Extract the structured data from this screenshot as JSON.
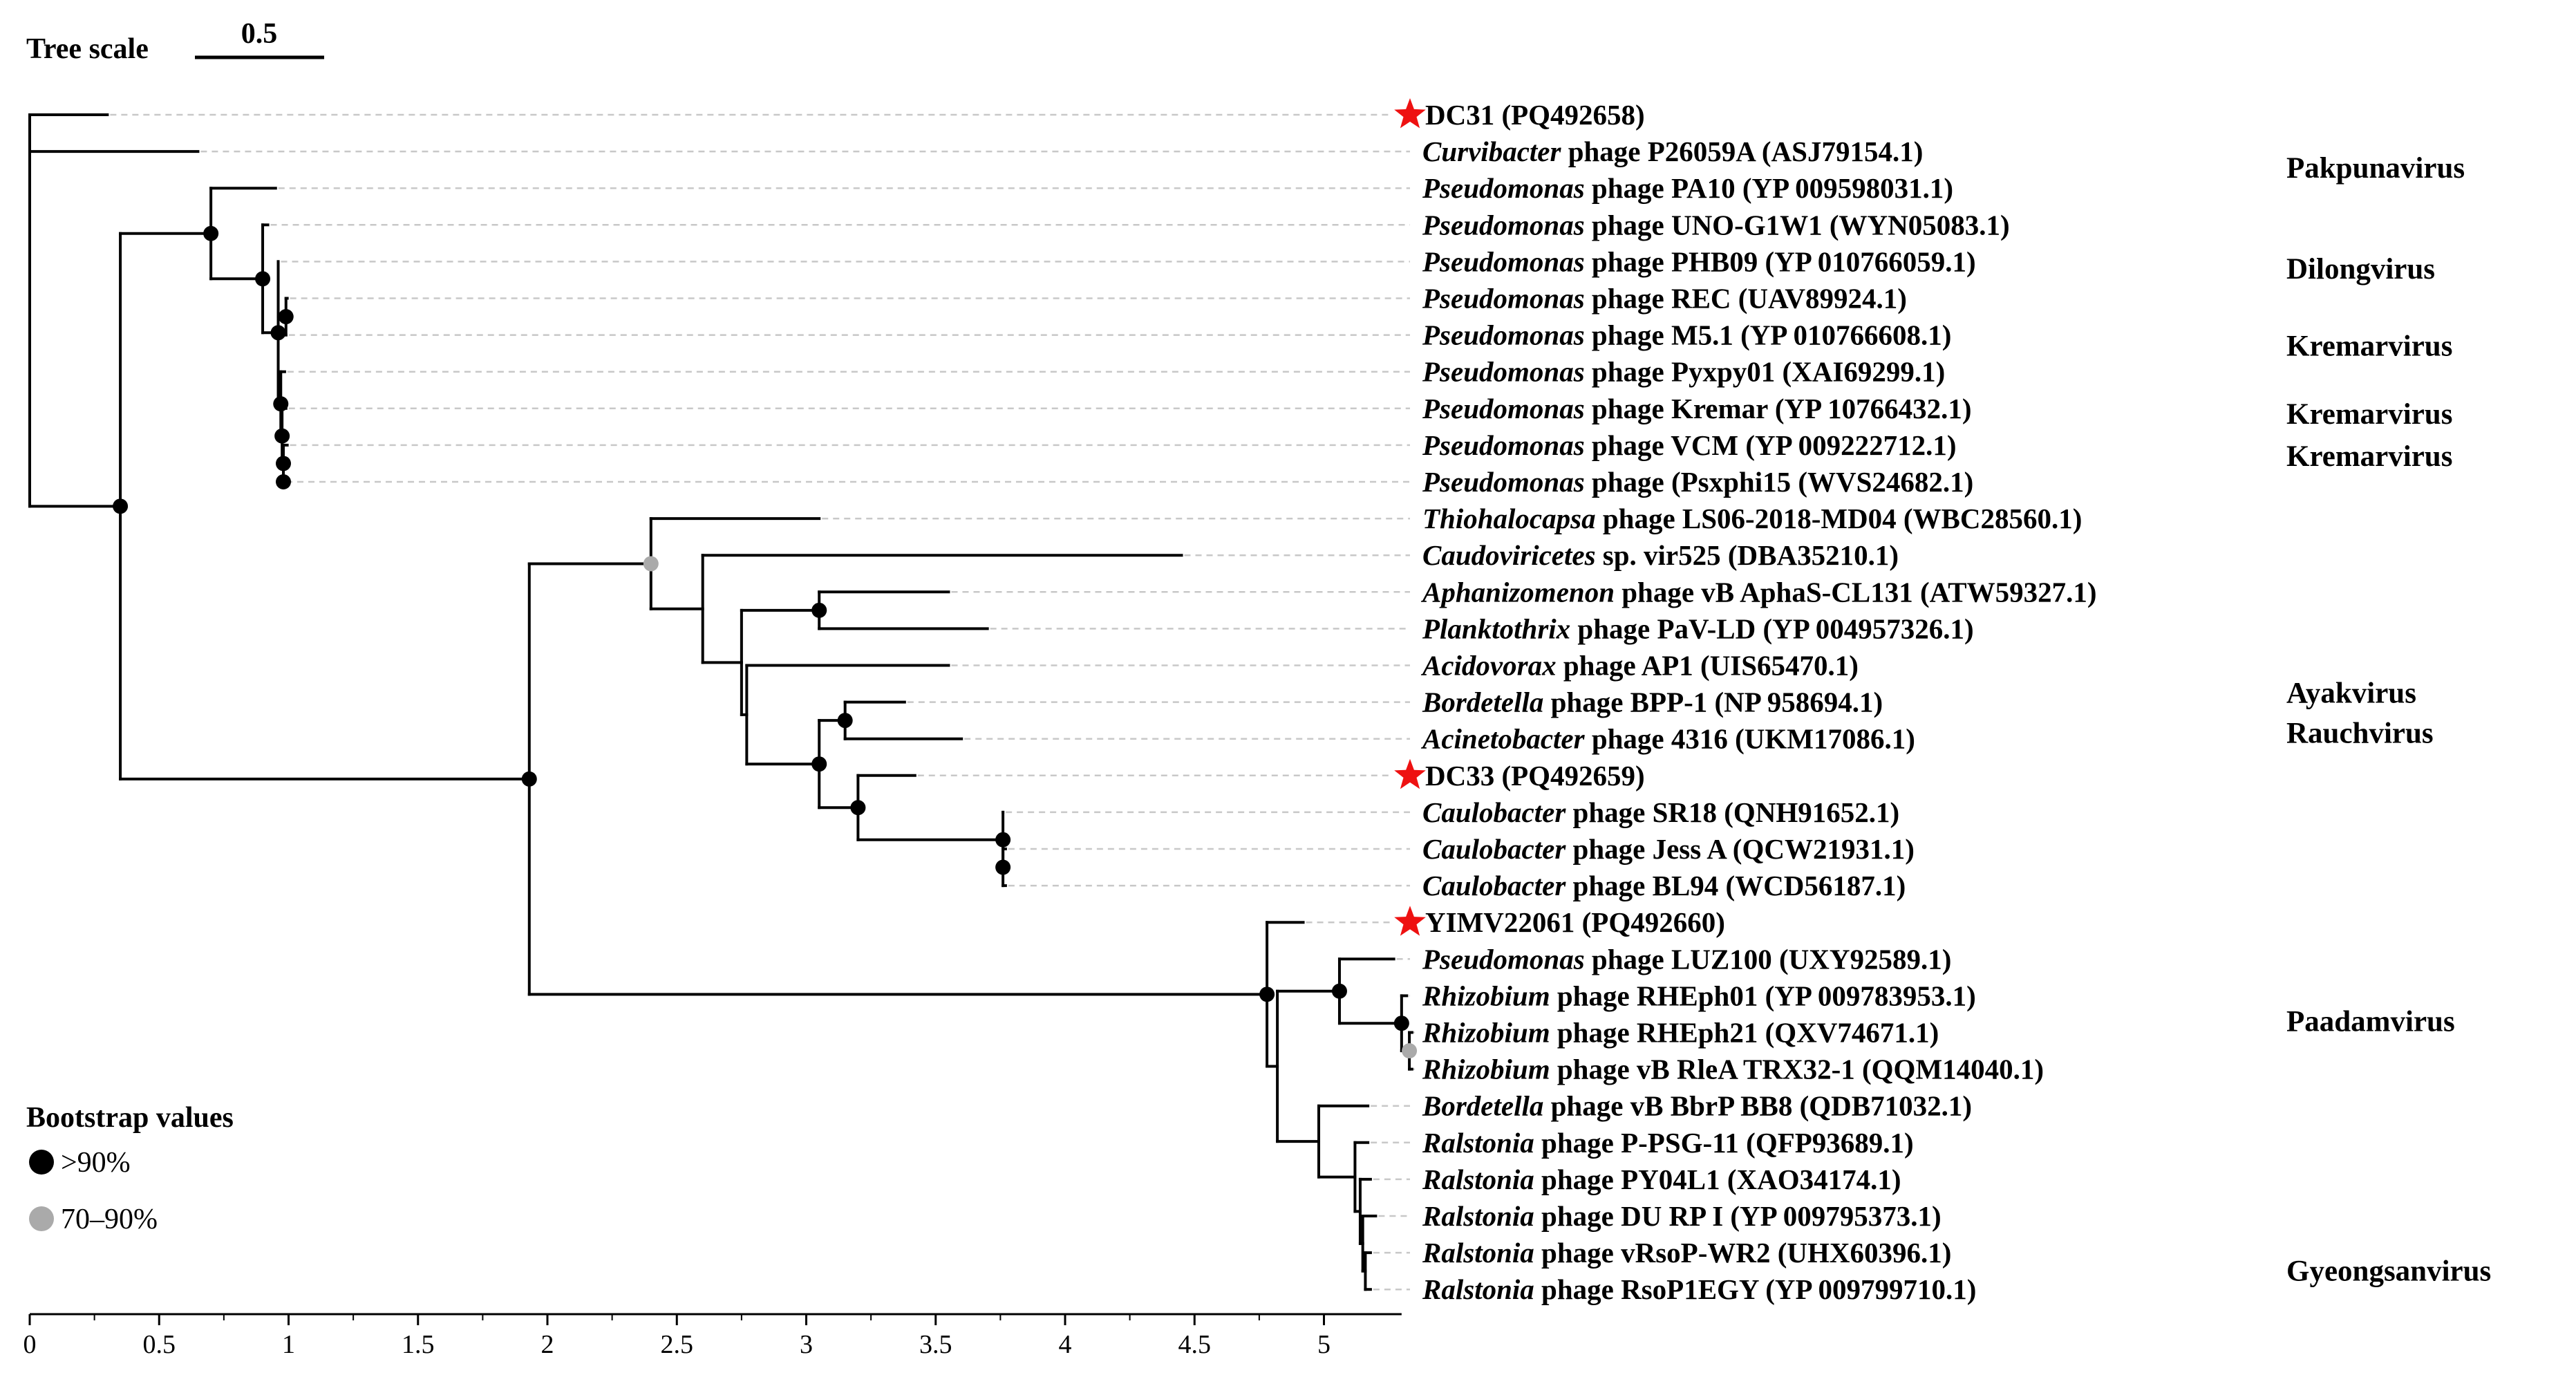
{
  "tree_scale": {
    "label": "Tree scale",
    "value_label": "0.5"
  },
  "axis": {
    "ticks": [
      "0",
      "0.5",
      "1",
      "1.5",
      "2",
      "2.5",
      "3",
      "3.5",
      "4",
      "4.5",
      "5"
    ]
  },
  "legend": {
    "title": "Bootstrap values",
    "items": [
      {
        "label": ">90%",
        "color": "#000000"
      },
      {
        "label": "70–90%",
        "color": "#aaaaaa"
      }
    ]
  },
  "star_color": "#ee1111",
  "taxa": [
    {
      "genus": "",
      "rest": "DC31 (PQ492658)",
      "star": true
    },
    {
      "genus": "Curvibacter",
      "rest": " phage P26059A (ASJ79154.1)"
    },
    {
      "genus": "Pseudomonas",
      "rest": " phage PA10 (YP 009598031.1)"
    },
    {
      "genus": "Pseudomonas",
      "rest": " phage UNO-G1W1 (WYN05083.1)"
    },
    {
      "genus": "Pseudomonas",
      "rest": " phage PHB09 (YP 010766059.1)"
    },
    {
      "genus": "Pseudomonas",
      "rest": " phage REC (UAV89924.1)"
    },
    {
      "genus": "Pseudomonas",
      "rest": " phage M5.1 (YP 010766608.1)"
    },
    {
      "genus": "Pseudomonas",
      "rest": " phage Pyxpy01 (XAI69299.1)"
    },
    {
      "genus": "Pseudomonas",
      "rest": " phage Kremar (YP 10766432.1)"
    },
    {
      "genus": "Pseudomonas",
      "rest": " phage VCM (YP 009222712.1)"
    },
    {
      "genus": "Pseudomonas",
      "rest": " phage (Psxphi15 (WVS24682.1)"
    },
    {
      "genus": "Thiohalocapsa",
      "rest": " phage LS06-2018-MD04 (WBC28560.1)"
    },
    {
      "genus": "Caudoviricetes",
      "rest": " sp. vir525 (DBA35210.1)"
    },
    {
      "genus": "Aphanizomenon",
      "rest": " phage vB AphaS-CL131 (ATW59327.1)"
    },
    {
      "genus": "Planktothrix",
      "rest": " phage PaV-LD (YP 004957326.1)"
    },
    {
      "genus": "Acidovorax",
      "rest": " phage AP1 (UIS65470.1)"
    },
    {
      "genus": "Bordetella",
      "rest": " phage BPP-1 (NP 958694.1)"
    },
    {
      "genus": "Acinetobacter",
      "rest": " phage 4316 (UKM17086.1)"
    },
    {
      "genus": "",
      "rest": "DC33 (PQ492659)",
      "star": true
    },
    {
      "genus": "Caulobacter",
      "rest": " phage SR18 (QNH91652.1)"
    },
    {
      "genus": "Caulobacter",
      "rest": " phage Jess A (QCW21931.1)"
    },
    {
      "genus": "Caulobacter",
      "rest": " phage BL94 (WCD56187.1)"
    },
    {
      "genus": "",
      "rest": "YIMV22061 (PQ492660)",
      "star": true
    },
    {
      "genus": "Pseudomonas",
      "rest": " phage LUZ100 (UXY92589.1)"
    },
    {
      "genus": "Rhizobium",
      "rest": " phage RHEph01 (YP 009783953.1)"
    },
    {
      "genus": "Rhizobium",
      "rest": " phage RHEph21 (QXV74671.1)"
    },
    {
      "genus": "Rhizobium",
      "rest": " phage vB RleA TRX32-1 (QQM14040.1)"
    },
    {
      "genus": "Bordetella",
      "rest": " phage vB BbrP BB8 (QDB71032.1)"
    },
    {
      "genus": "Ralstonia",
      "rest": " phage P-PSG-11 (QFP93689.1)"
    },
    {
      "genus": "Ralstonia",
      "rest": " phage PY04L1 (XAO34174.1)"
    },
    {
      "genus": "Ralstonia",
      "rest": " phage DU RP I (YP 009795373.1)"
    },
    {
      "genus": "Ralstonia",
      "rest": " phage vRsoP-WR2 (UHX60396.1)"
    },
    {
      "genus": "Ralstonia",
      "rest": " phage RsoP1EGY (YP 009799710.1)"
    }
  ],
  "genus_groups": [
    {
      "label": "Pakpunavirus",
      "row": 1.45
    },
    {
      "label": "Dilongvirus",
      "row": 4.2
    },
    {
      "label": "Kremarvirus",
      "row": 6.3
    },
    {
      "label": "Kremarvirus",
      "row": 8.15
    },
    {
      "label": "Kremarvirus",
      "row": 9.3
    },
    {
      "label": "Ayakvirus",
      "row": 15.75
    },
    {
      "label": "Rauchvirus",
      "row": 16.85
    },
    {
      "label": "Paadamvirus",
      "row": 24.7
    },
    {
      "label": "Gyeongsanvirus",
      "row": 31.5
    }
  ],
  "tree": {
    "x": 0,
    "children": [
      {
        "x": 0,
        "children": [
          {
            "x": 0.3,
            "leaf": 0
          },
          {
            "x": 0,
            "children": [
              {
                "x": 0.65,
                "leaf": 1
              },
              {
                "x": 0.35,
                "boot": "high",
                "children": [
                  {
                    "x": 0.7,
                    "boot": "high",
                    "children": [
                      {
                        "x": 0.95,
                        "leaf": 2
                      },
                      {
                        "x": 0.9,
                        "boot": "high",
                        "children": [
                          {
                            "x": 0.92,
                            "leaf": 3
                          },
                          {
                            "x": 0.96,
                            "boot": "high",
                            "children": [
                              {
                                "x": 0.96,
                                "leaf": 4
                              },
                              {
                                "x": 0.99,
                                "boot": "high",
                                "children": [
                                  {
                                    "x": 0.995,
                                    "leaf": 5
                                  },
                                  {
                                    "x": 0.99,
                                    "leaf": 6
                                  }
                                ]
                              },
                              {
                                "x": 0.97,
                                "boot": "high",
                                "children": [
                                  {
                                    "x": 0.985,
                                    "leaf": 7
                                  },
                                  {
                                    "x": 0.975,
                                    "boot": "high",
                                    "children": [
                                      {
                                        "x": 0.99,
                                        "leaf": 8
                                      },
                                      {
                                        "x": 0.98,
                                        "boot": "high",
                                        "children": [
                                          {
                                            "x": 0.995,
                                            "leaf": 9
                                          },
                                          {
                                            "x": 0.98,
                                            "boot": "high",
                                            "leaf": 10
                                          }
                                        ]
                                      }
                                    ]
                                  }
                                ]
                              }
                            ]
                          }
                        ]
                      }
                    ]
                  },
                  {
                    "x": 1.93,
                    "boot": "high",
                    "children": [
                      {
                        "x": 2.4,
                        "boot": "mid",
                        "children": [
                          {
                            "x": 3.05,
                            "leaf": 11
                          },
                          {
                            "x": 2.6,
                            "children": [
                              {
                                "x": 4.45,
                                "leaf": 12
                              },
                              {
                                "x": 2.75,
                                "children": [
                                  {
                                    "x": 3.05,
                                    "boot": "high",
                                    "children": [
                                      {
                                        "x": 3.55,
                                        "leaf": 13
                                      },
                                      {
                                        "x": 3.7,
                                        "leaf": 14
                                      }
                                    ]
                                  },
                                  {
                                    "x": 2.77,
                                    "children": [
                                      {
                                        "x": 3.55,
                                        "leaf": 15
                                      },
                                      {
                                        "x": 3.05,
                                        "boot": "high",
                                        "children": [
                                          {
                                            "x": 3.15,
                                            "boot": "high",
                                            "children": [
                                              {
                                                "x": 3.38,
                                                "leaf": 16
                                              },
                                              {
                                                "x": 3.6,
                                                "leaf": 17
                                              }
                                            ]
                                          },
                                          {
                                            "x": 3.2,
                                            "boot": "high",
                                            "children": [
                                              {
                                                "x": 3.42,
                                                "leaf": 18
                                              },
                                              {
                                                "x": 3.76,
                                                "boot": "high",
                                                "children": [
                                                  {
                                                    "x": 3.76,
                                                    "leaf": 19
                                                  },
                                                  {
                                                    "x": 3.76,
                                                    "boot": "high",
                                                    "children": [
                                                      {
                                                        "x": 3.77,
                                                        "leaf": 20
                                                      },
                                                      {
                                                        "x": 3.77,
                                                        "leaf": 21
                                                      }
                                                    ]
                                                  }
                                                ]
                                              }
                                            ]
                                          }
                                        ]
                                      }
                                    ]
                                  }
                                ]
                              }
                            ]
                          }
                        ]
                      },
                      {
                        "x": 4.78,
                        "boot": "high",
                        "children": [
                          {
                            "x": 4.92,
                            "leaf": 22
                          },
                          {
                            "x": 4.82,
                            "children": [
                              {
                                "x": 5.06,
                                "boot": "high",
                                "children": [
                                  {
                                    "x": 5.27,
                                    "leaf": 23
                                  },
                                  {
                                    "x": 5.3,
                                    "boot": "high",
                                    "children": [
                                      {
                                        "x": 5.32,
                                        "leaf": 24
                                      },
                                      {
                                        "x": 5.33,
                                        "boot": "mid",
                                        "children": [
                                          {
                                            "x": 5.34,
                                            "leaf": 25
                                          },
                                          {
                                            "x": 5.34,
                                            "leaf": 26
                                          }
                                        ]
                                      }
                                    ]
                                  }
                                ]
                              },
                              {
                                "x": 4.98,
                                "children": [
                                  {
                                    "x": 5.17,
                                    "leaf": 27
                                  },
                                  {
                                    "x": 5.12,
                                    "children": [
                                      {
                                        "x": 5.17,
                                        "leaf": 28
                                      },
                                      {
                                        "x": 5.14,
                                        "children": [
                                          {
                                            "x": 5.18,
                                            "leaf": 29
                                          },
                                          {
                                            "x": 5.15,
                                            "children": [
                                              {
                                                "x": 5.2,
                                                "leaf": 30
                                              },
                                              {
                                                "x": 5.16,
                                                "children": [
                                                  {
                                                    "x": 5.18,
                                                    "leaf": 31
                                                  },
                                                  {
                                                    "x": 5.18,
                                                    "leaf": 32
                                                  }
                                                ]
                                              }
                                            ]
                                          }
                                        ]
                                      }
                                    ]
                                  }
                                ]
                              }
                            ]
                          }
                        ]
                      }
                    ]
                  }
                ]
              }
            ]
          }
        ]
      }
    ]
  }
}
